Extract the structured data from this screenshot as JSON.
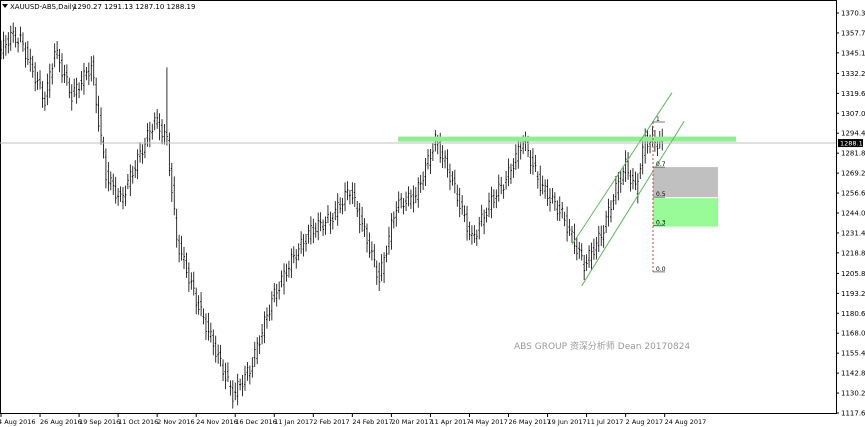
{
  "chart_data": {
    "type": "ohlc",
    "title": "XAUUSD-ABS,Daily",
    "ohlc_header": "1290.27 1291.13 1287.10 1288.19",
    "current_price": "1288.19",
    "ylim": [
      1117.65,
      1370.35
    ],
    "y_ticks": [
      "1370.35",
      "1357.75",
      "1345.15",
      "1332.20",
      "1319.60",
      "1307.00",
      "1294.40",
      "1281.80",
      "1269.20",
      "1256.60",
      "1244.00",
      "1231.40",
      "1218.80",
      "1205.85",
      "1193.25",
      "1180.65",
      "1168.05",
      "1155.45",
      "1142.85",
      "1130.25",
      "1117.65"
    ],
    "x_ticks": [
      "4 Aug 2016",
      "26 Aug 2016",
      "19 Sep 2016",
      "11 Oct 2016",
      "2 Nov 2016",
      "24 Nov 2016",
      "16 Dec 2016",
      "11 Jan 2017",
      "2 Feb 2017",
      "24 Feb 2017",
      "20 Mar 2017",
      "11 Apr 2017",
      "4 May 2017",
      "26 May 2017",
      "19 Jun 2017",
      "11 Jul 2017",
      "2 Aug 2017",
      "24 Aug 2017"
    ],
    "bars_per_tick": 16,
    "approx_close_path": [
      [
        0,
        1347
      ],
      [
        4,
        1356
      ],
      [
        8,
        1353
      ],
      [
        18,
        1315
      ],
      [
        22,
        1347
      ],
      [
        29,
        1318
      ],
      [
        37,
        1337
      ],
      [
        43,
        1268
      ],
      [
        49,
        1252
      ],
      [
        55,
        1274
      ],
      [
        63,
        1303
      ],
      [
        68,
        1290
      ],
      [
        72,
        1227
      ],
      [
        80,
        1189
      ],
      [
        88,
        1157
      ],
      [
        95,
        1129
      ],
      [
        102,
        1145
      ],
      [
        111,
        1189
      ],
      [
        119,
        1214
      ],
      [
        127,
        1233
      ],
      [
        135,
        1240
      ],
      [
        143,
        1259
      ],
      [
        150,
        1227
      ],
      [
        155,
        1202
      ],
      [
        162,
        1249
      ],
      [
        170,
        1255
      ],
      [
        178,
        1290
      ],
      [
        184,
        1268
      ],
      [
        193,
        1227
      ],
      [
        201,
        1252
      ],
      [
        207,
        1265
      ],
      [
        214,
        1290
      ],
      [
        221,
        1262
      ],
      [
        230,
        1243
      ],
      [
        239,
        1211
      ],
      [
        246,
        1230
      ],
      [
        252,
        1259
      ],
      [
        256,
        1274
      ],
      [
        260,
        1259
      ],
      [
        264,
        1290
      ],
      [
        271,
        1288
      ]
    ],
    "spike": {
      "bar": 68,
      "high": 1336
    },
    "resistance_zone": {
      "price": 1291,
      "color": "#90EE90"
    },
    "channel": {
      "color": "#5cb85c",
      "upper": [
        [
          234,
          1224
        ],
        [
          275,
          1320
        ]
      ],
      "lower": [
        [
          238,
          1198
        ],
        [
          280,
          1302
        ]
      ]
    },
    "fibonacci": {
      "levels": [
        {
          "label": "1",
          "price": 1301.5
        },
        {
          "label": "0.7",
          "price": 1273
        },
        {
          "label": "0.5",
          "price": 1254
        },
        {
          "label": "0.3",
          "price": 1236
        },
        {
          "label": "0.0",
          "price": 1206.8
        }
      ],
      "zone_upper_color": "#c0c0c0",
      "zone_lower_color": "#98fb98",
      "line_color": "#d04040"
    },
    "watermark": "ABS GROUP 资深分析师 Dean 20170824",
    "colors": {
      "bars": "#000000",
      "grid": "#c0c0c0",
      "price_box": "#000000"
    }
  }
}
